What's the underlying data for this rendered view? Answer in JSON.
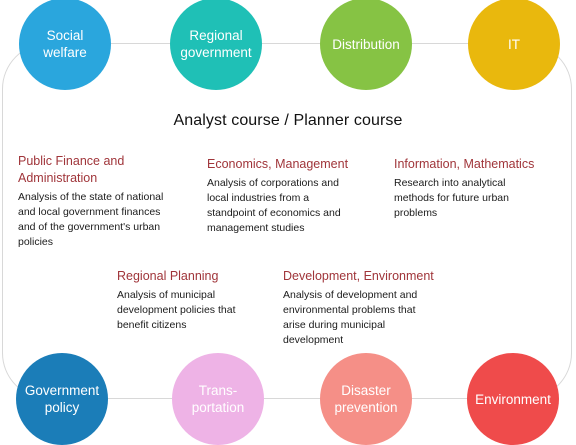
{
  "title": "Analyst course / Planner course",
  "top_circles": [
    {
      "label": "Social\nwelfare",
      "color": "#2aa6dd"
    },
    {
      "label": "Regional\ngovernment",
      "color": "#1fc0b6"
    },
    {
      "label": "Distribution",
      "color": "#86c344"
    },
    {
      "label": "IT",
      "color": "#e9b80d"
    }
  ],
  "bottom_circles": [
    {
      "label": "Government\npolicy",
      "color": "#1b7db8"
    },
    {
      "label": "Trans-\nportation",
      "color": "#eeb3e6"
    },
    {
      "label": "Disaster\nprevention",
      "color": "#f58f87"
    },
    {
      "label": "Environment",
      "color": "#ef4b4b"
    }
  ],
  "fields": [
    {
      "heading": "Public Finance and\nAdministration",
      "text": "Analysis of the state of national\nand local government finances\nand of the government's urban\npolicies"
    },
    {
      "heading": "Economics, Management",
      "text": "Analysis of corporations and\nlocal industries from a\nstandpoint of economics and\nmanagement studies"
    },
    {
      "heading": "Information, Mathematics",
      "text": "Research into analytical\nmethods for future urban\nproblems"
    },
    {
      "heading": "Regional Planning",
      "text": "Analysis of municipal\ndevelopment policies that\nbenefit citizens"
    },
    {
      "heading": "Development, Environment",
      "text": "Analysis of development and\nenvironmental problems that\narise during municipal\ndevelopment"
    }
  ]
}
